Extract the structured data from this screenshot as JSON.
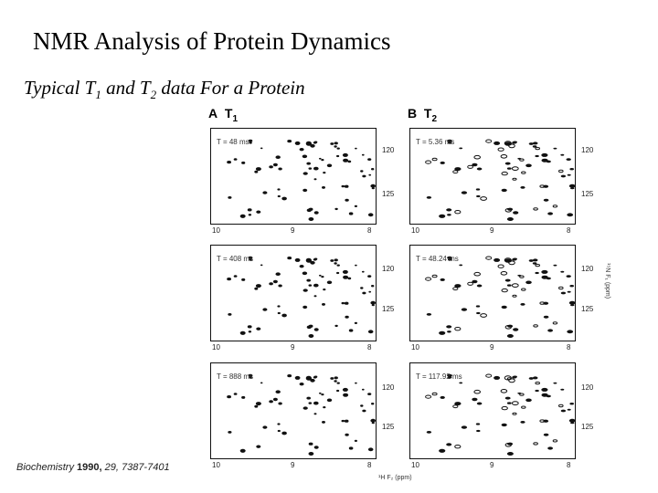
{
  "slide": {
    "title": "NMR Analysis of Protein Dynamics",
    "subtitle_prefix": "Typical T",
    "subtitle_sub1": "1",
    "subtitle_mid": " and T",
    "subtitle_sub2": "2",
    "subtitle_suffix": "  data For a Protein",
    "citation_journal": "Biochemistry ",
    "citation_year": "1990,",
    "citation_rest": " 29, 7387-7401"
  },
  "figure": {
    "panel_a_letter": "A",
    "panel_a_t": "T",
    "panel_a_sub": "1",
    "panel_b_letter": "B",
    "panel_b_t": "T",
    "panel_b_sub": "2",
    "x_ticks_left": [
      "10",
      "9",
      "8"
    ],
    "x_ticks_right": [
      "10",
      "9",
      "8"
    ],
    "y_ticks": [
      "120",
      "125"
    ],
    "x_axis_title": "¹H F₂ (ppm)",
    "y_axis_title": "¹⁵N F₁ (ppm)",
    "t1_labels": [
      "T = 48 ms",
      "T = 408 ms",
      "T = 888 ms"
    ],
    "t2_labels": [
      "T = 5.36 ms",
      "T = 48.24 ms",
      "T = 117.92 ms"
    ]
  }
}
